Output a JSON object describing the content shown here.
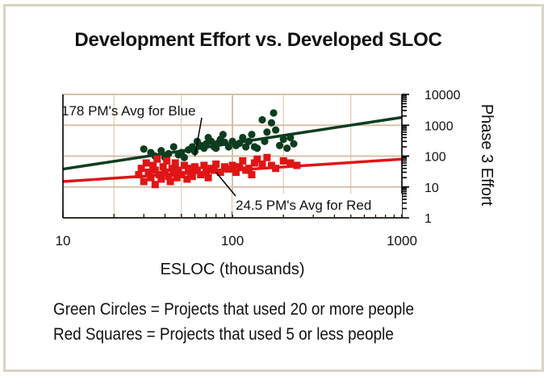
{
  "chart_data": {
    "type": "scatter",
    "title": "Development Effort vs. Developed SLOC",
    "xlabel": "ESLOC (thousands)",
    "ylabel": "Phase 3 Effort",
    "x_scale": "log",
    "y_scale": "log",
    "xlim": [
      10,
      1000
    ],
    "ylim": [
      1,
      10000
    ],
    "x_ticks": [
      "10",
      "100",
      "1000"
    ],
    "y_ticks": [
      "10000",
      "1000",
      "100",
      "10",
      "1"
    ],
    "y_axis_side": "right",
    "grid": true,
    "colors": {
      "green": "#0d3d1f",
      "red": "#e01515",
      "grid": "#d8c0a8",
      "frame": "#d9d3c3"
    },
    "series": [
      {
        "name": "Green Circles",
        "marker": "circle",
        "color": "#0d3d1f",
        "points": [
          [
            30,
            170
          ],
          [
            33,
            130
          ],
          [
            35,
            100
          ],
          [
            38,
            150
          ],
          [
            40,
            90
          ],
          [
            42,
            120
          ],
          [
            45,
            200
          ],
          [
            48,
            110
          ],
          [
            50,
            130
          ],
          [
            52,
            90
          ],
          [
            55,
            160
          ],
          [
            58,
            200
          ],
          [
            60,
            140
          ],
          [
            62,
            300
          ],
          [
            65,
            220
          ],
          [
            68,
            180
          ],
          [
            70,
            250
          ],
          [
            72,
            400
          ],
          [
            75,
            300
          ],
          [
            78,
            200
          ],
          [
            80,
            180
          ],
          [
            82,
            260
          ],
          [
            85,
            350
          ],
          [
            88,
            500
          ],
          [
            90,
            280
          ],
          [
            95,
            200
          ],
          [
            100,
            300
          ],
          [
            105,
            220
          ],
          [
            110,
            260
          ],
          [
            115,
            400
          ],
          [
            120,
            200
          ],
          [
            125,
            300
          ],
          [
            130,
            500
          ],
          [
            135,
            200
          ],
          [
            140,
            180
          ],
          [
            150,
            1500
          ],
          [
            155,
            300
          ],
          [
            160,
            600
          ],
          [
            170,
            1200
          ],
          [
            175,
            2500
          ],
          [
            180,
            700
          ],
          [
            190,
            220
          ],
          [
            200,
            350
          ],
          [
            210,
            180
          ],
          [
            220,
            400
          ],
          [
            230,
            250
          ]
        ]
      },
      {
        "name": "Red Squares",
        "marker": "square",
        "color": "#e01515",
        "points": [
          [
            28,
            25
          ],
          [
            29,
            40
          ],
          [
            30,
            15
          ],
          [
            31,
            60
          ],
          [
            32,
            30
          ],
          [
            33,
            20
          ],
          [
            34,
            50
          ],
          [
            35,
            12
          ],
          [
            35,
            35
          ],
          [
            36,
            80
          ],
          [
            37,
            25
          ],
          [
            38,
            18
          ],
          [
            39,
            45
          ],
          [
            40,
            30
          ],
          [
            41,
            70
          ],
          [
            42,
            22
          ],
          [
            43,
            15
          ],
          [
            44,
            40
          ],
          [
            45,
            28
          ],
          [
            46,
            60
          ],
          [
            47,
            20
          ],
          [
            48,
            35
          ],
          [
            50,
            25
          ],
          [
            52,
            50
          ],
          [
            54,
            18
          ],
          [
            55,
            40
          ],
          [
            57,
            30
          ],
          [
            58,
            22
          ],
          [
            60,
            45
          ],
          [
            62,
            35
          ],
          [
            65,
            25
          ],
          [
            68,
            50
          ],
          [
            70,
            30
          ],
          [
            72,
            20
          ],
          [
            75,
            40
          ],
          [
            78,
            35
          ],
          [
            80,
            55
          ],
          [
            85,
            30
          ],
          [
            90,
            45
          ],
          [
            95,
            38
          ],
          [
            100,
            50
          ],
          [
            105,
            30
          ],
          [
            110,
            45
          ],
          [
            115,
            70
          ],
          [
            120,
            35
          ],
          [
            125,
            40
          ],
          [
            130,
            25
          ],
          [
            135,
            60
          ],
          [
            140,
            80
          ],
          [
            150,
            55
          ],
          [
            160,
            90
          ],
          [
            170,
            50
          ],
          [
            180,
            40
          ],
          [
            200,
            70
          ],
          [
            220,
            60
          ],
          [
            240,
            50
          ]
        ]
      }
    ],
    "trend_lines": [
      {
        "series": "Green Circles",
        "color": "#0d3d1f",
        "from": [
          10,
          38
        ],
        "to": [
          1000,
          1800
        ]
      },
      {
        "series": "Red Squares",
        "color": "#e01515",
        "from": [
          10,
          15
        ],
        "to": [
          1000,
          80
        ]
      }
    ],
    "annotations": [
      {
        "text": "178 PM's Avg for Blue",
        "target": [
          60,
          160
        ]
      },
      {
        "text": "24.5 PM's Avg for Red",
        "target": [
          80,
          30
        ]
      }
    ],
    "legend_lines": [
      "Green Circles = Projects that used 20 or more people",
      "Red Squares = Projects that used 5 or less people"
    ]
  }
}
